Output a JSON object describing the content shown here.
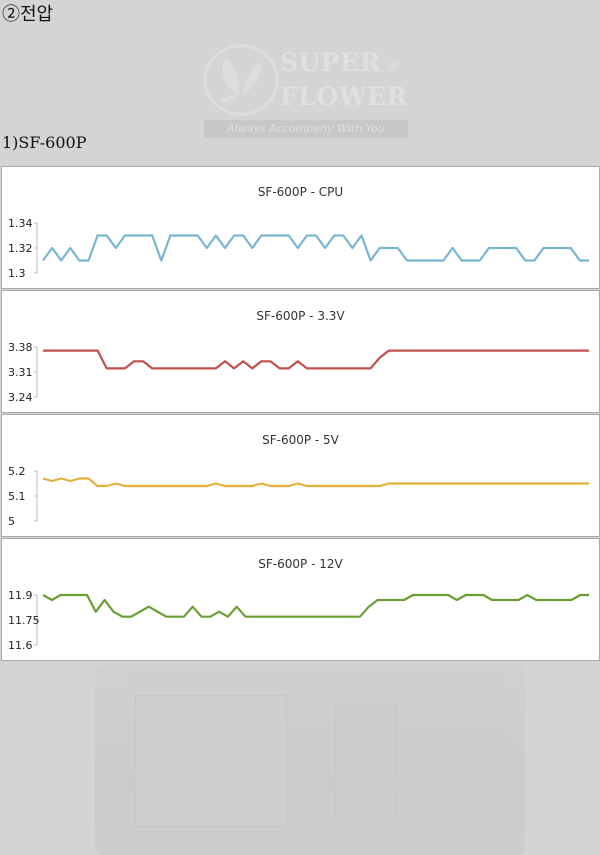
{
  "heading": "②전압",
  "subheading": "1)SF-600P",
  "logo": {
    "line1": "SUPER",
    "line2": "FLOWER",
    "registered": "®",
    "tagline": "Always Accompany With You"
  },
  "colors": {
    "cpu": "#7ab6d2",
    "v33": "#c0504d",
    "v5": "#e3b13a",
    "v12": "#6a9e34"
  },
  "chart_data": [
    {
      "type": "line",
      "title": "SF-600P - CPU",
      "color": "#7ab6d2",
      "yticks": [
        "1.34",
        "1.32",
        "1.3"
      ],
      "ylim": [
        1.3,
        1.34
      ],
      "grid": false,
      "values": [
        1.31,
        1.32,
        1.31,
        1.32,
        1.31,
        1.31,
        1.33,
        1.33,
        1.32,
        1.33,
        1.33,
        1.33,
        1.33,
        1.31,
        1.33,
        1.33,
        1.33,
        1.33,
        1.32,
        1.33,
        1.32,
        1.33,
        1.33,
        1.32,
        1.33,
        1.33,
        1.33,
        1.33,
        1.32,
        1.33,
        1.33,
        1.32,
        1.33,
        1.33,
        1.32,
        1.33,
        1.31,
        1.32,
        1.32,
        1.32,
        1.31,
        1.31,
        1.31,
        1.31,
        1.31,
        1.32,
        1.31,
        1.31,
        1.31,
        1.32,
        1.32,
        1.32,
        1.32,
        1.31,
        1.31,
        1.32,
        1.32,
        1.32,
        1.32,
        1.31,
        1.31
      ]
    },
    {
      "type": "line",
      "title": "SF-600P - 3.3V",
      "color": "#c0504d",
      "yticks": [
        "3.38",
        "3.31",
        "3.24"
      ],
      "ylim": [
        3.24,
        3.38
      ],
      "grid": false,
      "values": [
        3.37,
        3.37,
        3.37,
        3.37,
        3.37,
        3.37,
        3.37,
        3.32,
        3.32,
        3.32,
        3.34,
        3.34,
        3.32,
        3.32,
        3.32,
        3.32,
        3.32,
        3.32,
        3.32,
        3.32,
        3.34,
        3.32,
        3.34,
        3.32,
        3.34,
        3.34,
        3.32,
        3.32,
        3.34,
        3.32,
        3.32,
        3.32,
        3.32,
        3.32,
        3.32,
        3.32,
        3.32,
        3.35,
        3.37,
        3.37,
        3.37,
        3.37,
        3.37,
        3.37,
        3.37,
        3.37,
        3.37,
        3.37,
        3.37,
        3.37,
        3.37,
        3.37,
        3.37,
        3.37,
        3.37,
        3.37,
        3.37,
        3.37,
        3.37,
        3.37,
        3.37
      ]
    },
    {
      "type": "line",
      "title": "SF-600P - 5V",
      "color": "#e3b13a",
      "yticks": [
        "5.2",
        "5.1",
        "5"
      ],
      "ylim": [
        5.0,
        5.2
      ],
      "grid": false,
      "values": [
        5.17,
        5.16,
        5.17,
        5.16,
        5.17,
        5.17,
        5.14,
        5.14,
        5.15,
        5.14,
        5.14,
        5.14,
        5.14,
        5.14,
        5.14,
        5.14,
        5.14,
        5.14,
        5.14,
        5.15,
        5.14,
        5.14,
        5.14,
        5.14,
        5.15,
        5.14,
        5.14,
        5.14,
        5.15,
        5.14,
        5.14,
        5.14,
        5.14,
        5.14,
        5.14,
        5.14,
        5.14,
        5.14,
        5.15,
        5.15,
        5.15,
        5.15,
        5.15,
        5.15,
        5.15,
        5.15,
        5.15,
        5.15,
        5.15,
        5.15,
        5.15,
        5.15,
        5.15,
        5.15,
        5.15,
        5.15,
        5.15,
        5.15,
        5.15,
        5.15,
        5.15
      ]
    },
    {
      "type": "line",
      "title": "SF-600P - 12V",
      "color": "#6a9e34",
      "yticks": [
        "11.9",
        "11.75",
        "11.6"
      ],
      "ylim": [
        11.6,
        11.9
      ],
      "grid": false,
      "values": [
        11.9,
        11.87,
        11.9,
        11.9,
        11.9,
        11.9,
        11.8,
        11.87,
        11.8,
        11.77,
        11.77,
        11.8,
        11.83,
        11.8,
        11.77,
        11.77,
        11.77,
        11.83,
        11.77,
        11.77,
        11.8,
        11.77,
        11.83,
        11.77,
        11.77,
        11.77,
        11.77,
        11.77,
        11.77,
        11.77,
        11.77,
        11.77,
        11.77,
        11.77,
        11.77,
        11.77,
        11.77,
        11.83,
        11.87,
        11.87,
        11.87,
        11.87,
        11.9,
        11.9,
        11.9,
        11.9,
        11.9,
        11.87,
        11.9,
        11.9,
        11.9,
        11.87,
        11.87,
        11.87,
        11.87,
        11.9,
        11.87,
        11.87,
        11.87,
        11.87,
        11.87,
        11.9,
        11.9
      ]
    }
  ]
}
